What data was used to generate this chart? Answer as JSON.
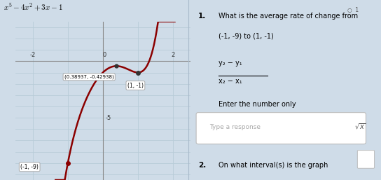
{
  "title": "$x^5 - 4x^2 + 3x - 1$",
  "xlim": [
    -2.5,
    2.5
  ],
  "ylim": [
    -10.5,
    3.5
  ],
  "curve_color": "#8B0000",
  "bg_color": "#cfdce8",
  "grid_color": "#b8ccd8",
  "axis_color": "#888888",
  "point1": [
    -1,
    -9
  ],
  "point2": [
    1,
    -1
  ],
  "local_min": [
    0.38937,
    -0.42938
  ],
  "label_point1": "(-1, -9)",
  "label_point2": "(1, -1)",
  "label_local_min": "(0.38937, -0.42938)",
  "right_panel_bg": "#dce8f2",
  "question_text": "What is the average rate of change from\n(-1, -9) to (1, -1)",
  "formula_num": "y₂ − y₁",
  "formula_den": "x₂ − x₁",
  "instruction": "Enter the number only",
  "placeholder": "Type a response",
  "question2_text": "On what interval(s) is the graph",
  "divider_color": "#aabbcc"
}
